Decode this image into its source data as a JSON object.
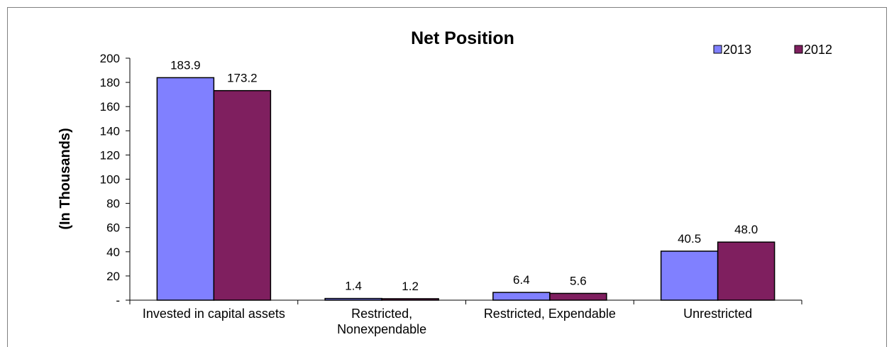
{
  "chart_data": {
    "type": "bar",
    "title": "Net Position",
    "ylabel": "(In Thousands)",
    "xlabel": "",
    "categories": [
      "Invested in capital assets",
      "Restricted, Nonexpendable",
      "Restricted, Expendable",
      "Unrestricted"
    ],
    "category_label_lines": [
      [
        "Invested in capital assets"
      ],
      [
        "Restricted,",
        "Nonexpendable"
      ],
      [
        "Restricted, Expendable"
      ],
      [
        "Unrestricted"
      ]
    ],
    "series": [
      {
        "name": "2013",
        "color": "#8080FF",
        "values": [
          183.9,
          1.4,
          6.4,
          40.5
        ],
        "labels": [
          "183.9",
          "1.4",
          "6.4",
          "40.5"
        ]
      },
      {
        "name": "2012",
        "color": "#7F1F5F",
        "values": [
          173.2,
          1.2,
          5.6,
          48.0
        ],
        "labels": [
          "173.2",
          "1.2",
          "5.6",
          "48.0"
        ]
      }
    ],
    "ylim": [
      0,
      200
    ],
    "y_ticks": [
      {
        "value": 0,
        "label": "-"
      },
      {
        "value": 20,
        "label": "20"
      },
      {
        "value": 40,
        "label": "40"
      },
      {
        "value": 60,
        "label": "60"
      },
      {
        "value": 80,
        "label": "80"
      },
      {
        "value": 100,
        "label": "100"
      },
      {
        "value": 120,
        "label": "120"
      },
      {
        "value": 140,
        "label": "140"
      },
      {
        "value": 160,
        "label": "160"
      },
      {
        "value": 180,
        "label": "180"
      },
      {
        "value": 200,
        "label": "200"
      }
    ],
    "grid": false,
    "legend_position": "top-right"
  }
}
